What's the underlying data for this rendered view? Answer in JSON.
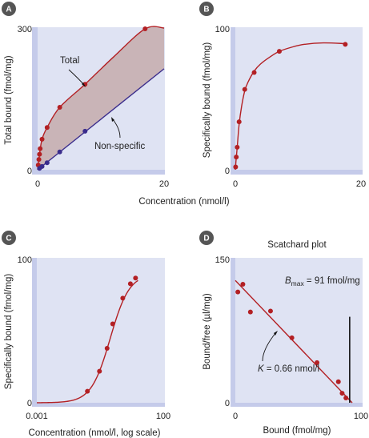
{
  "colors": {
    "plot_background": "#dfe3f3",
    "axis_band": "#c5cbea",
    "red_series": "#b32024",
    "blue_series": "#3a2c8c",
    "shaded_area": "#c6aeb0",
    "badge": "#555555"
  },
  "chart_data": [
    {
      "panel": "A",
      "type": "line",
      "xlabel": "",
      "ylabel": "Total bound (fmol/mg)",
      "xlim": [
        0,
        20
      ],
      "ylim": [
        0,
        300
      ],
      "xticks": [
        "0",
        "20"
      ],
      "yticks": [
        "0",
        "300"
      ],
      "series": [
        {
          "name": "Total",
          "color": "#b32024",
          "points": [
            [
              0.1,
              10
            ],
            [
              0.2,
              22
            ],
            [
              0.3,
              33
            ],
            [
              0.4,
              45
            ],
            [
              0.7,
              65
            ],
            [
              1.5,
              90
            ],
            [
              3.5,
              133
            ],
            [
              7.5,
              182
            ],
            [
              17,
              300
            ]
          ],
          "curve": [
            [
              0,
              0
            ],
            [
              0.1,
              10
            ],
            [
              0.3,
              33
            ],
            [
              0.7,
              65
            ],
            [
              1.5,
              90
            ],
            [
              3.5,
              133
            ],
            [
              7.5,
              182
            ],
            [
              12,
              240
            ],
            [
              17,
              300
            ],
            [
              20,
              335
            ]
          ]
        },
        {
          "name": "Non-specific",
          "color": "#3a2c8c",
          "points": [
            [
              0.3,
              3
            ],
            [
              0.7,
              7
            ],
            [
              1.5,
              15
            ],
            [
              3.5,
              38
            ],
            [
              7.5,
              82
            ]
          ],
          "curve": [
            [
              0,
              0
            ],
            [
              20,
              215
            ]
          ]
        }
      ],
      "annotations": [
        {
          "text": "Total",
          "points_to": [
            7,
            168
          ]
        },
        {
          "text": "Non-specific",
          "points_to": [
            11.5,
            125
          ]
        }
      ]
    },
    {
      "panel": "B",
      "type": "line",
      "xlabel": "",
      "ylabel": "Specifically bound (fmol/mg)",
      "xlim": [
        0,
        20
      ],
      "ylim": [
        0,
        100
      ],
      "xticks": [
        "0",
        "20"
      ],
      "yticks": [
        "0",
        "100"
      ],
      "series": [
        {
          "name": "",
          "color": "#b32024",
          "points": [
            [
              0.05,
              2
            ],
            [
              0.15,
              9
            ],
            [
              0.3,
              16
            ],
            [
              0.6,
              34
            ],
            [
              1.5,
              57
            ],
            [
              3,
              69
            ],
            [
              7,
              84
            ],
            [
              17.5,
              89
            ]
          ],
          "curve": [
            [
              0,
              0
            ],
            [
              0.1,
              6
            ],
            [
              0.3,
              16
            ],
            [
              0.6,
              32
            ],
            [
              1,
              45
            ],
            [
              1.5,
              56
            ],
            [
              2,
              62
            ],
            [
              3,
              70
            ],
            [
              4,
              75
            ],
            [
              5.5,
              80
            ],
            [
              7,
              84
            ],
            [
              9,
              87
            ],
            [
              11,
              89
            ],
            [
              14,
              90
            ],
            [
              17.5,
              89.5
            ]
          ]
        }
      ]
    },
    {
      "panel": "C",
      "type": "line",
      "xlabel": "Concentration (nmol/l, log scale)",
      "ylabel": "Specifically bound (fmol/mg)",
      "xscale": "log",
      "xlim": [
        0.001,
        100
      ],
      "ylim": [
        0,
        100
      ],
      "xticks": [
        "0.001",
        "100"
      ],
      "yticks": [
        "0",
        "100"
      ],
      "series": [
        {
          "name": "",
          "color": "#b32024",
          "points": [
            [
              0.1,
              8
            ],
            [
              0.3,
              22
            ],
            [
              0.6,
              38
            ],
            [
              1,
              55
            ],
            [
              2.5,
              73
            ],
            [
              5,
              83
            ],
            [
              8,
              87
            ]
          ]
        }
      ]
    },
    {
      "panel": "D",
      "type": "scatter",
      "title": "Scatchard plot",
      "xlabel": "Bound (fmol/mg)",
      "ylabel": "Bound/free (µl/mg)",
      "xlim": [
        0,
        100
      ],
      "ylim": [
        0,
        150
      ],
      "xticks": [
        "0",
        "100"
      ],
      "yticks": [
        "0",
        "150"
      ],
      "series": [
        {
          "name": "",
          "color": "#b32024",
          "points": [
            [
              2,
              116
            ],
            [
              6,
              124
            ],
            [
              12,
              95
            ],
            [
              28,
              96
            ],
            [
              45,
              68
            ],
            [
              65,
              42
            ],
            [
              82,
              22
            ],
            [
              85,
              10
            ],
            [
              88,
              5
            ]
          ],
          "fit_line": [
            [
              0,
              128
            ],
            [
              93,
              0
            ]
          ]
        }
      ],
      "bmax": {
        "label": "B",
        "subscript": "max",
        "value_text": " = 91 fmol/mg",
        "x": 91
      },
      "k_annotation": {
        "label": "K",
        "value_text": " = 0.66 nmol/l"
      }
    }
  ],
  "shared": {
    "concentration_label": "Concentration (nmol/l)"
  }
}
